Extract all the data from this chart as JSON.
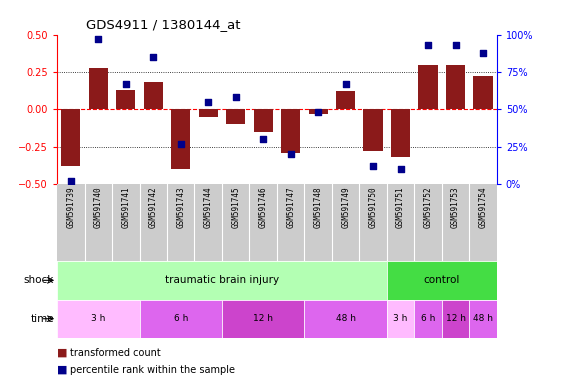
{
  "title": "GDS4911 / 1380144_at",
  "samples": [
    "GSM591739",
    "GSM591740",
    "GSM591741",
    "GSM591742",
    "GSM591743",
    "GSM591744",
    "GSM591745",
    "GSM591746",
    "GSM591747",
    "GSM591748",
    "GSM591749",
    "GSM591750",
    "GSM591751",
    "GSM591752",
    "GSM591753",
    "GSM591754"
  ],
  "bar_values": [
    -0.38,
    0.28,
    0.13,
    0.18,
    -0.4,
    -0.05,
    -0.1,
    -0.15,
    -0.29,
    -0.03,
    0.12,
    -0.28,
    -0.32,
    0.3,
    0.3,
    0.22
  ],
  "percentile_values": [
    2,
    97,
    67,
    85,
    27,
    55,
    58,
    30,
    20,
    48,
    67,
    12,
    10,
    93,
    93,
    88
  ],
  "bar_color": "#8b1a1a",
  "percentile_color": "#00008b",
  "ylim_left": [
    -0.5,
    0.5
  ],
  "ylim_right": [
    0,
    100
  ],
  "yticks_left": [
    -0.5,
    -0.25,
    0.0,
    0.25,
    0.5
  ],
  "ytick_labels_right": [
    "0%",
    "25%",
    "50%",
    "75%",
    "100%"
  ],
  "dotted_lines": [
    0.25,
    0.0,
    -0.25
  ],
  "shock_groups": [
    {
      "label": "traumatic brain injury",
      "start": 0,
      "end": 12,
      "color": "#b3ffb3"
    },
    {
      "label": "control",
      "start": 12,
      "end": 16,
      "color": "#44dd44"
    }
  ],
  "time_groups": [
    {
      "label": "3 h",
      "start": 0,
      "end": 3,
      "color": "#ffbbff"
    },
    {
      "label": "6 h",
      "start": 3,
      "end": 6,
      "color": "#dd66ee"
    },
    {
      "label": "12 h",
      "start": 6,
      "end": 9,
      "color": "#cc44cc"
    },
    {
      "label": "48 h",
      "start": 9,
      "end": 12,
      "color": "#dd66ee"
    },
    {
      "label": "3 h",
      "start": 12,
      "end": 13,
      "color": "#ffbbff"
    },
    {
      "label": "6 h",
      "start": 13,
      "end": 14,
      "color": "#dd66ee"
    },
    {
      "label": "12 h",
      "start": 14,
      "end": 15,
      "color": "#cc44cc"
    },
    {
      "label": "48 h",
      "start": 15,
      "end": 16,
      "color": "#dd66ee"
    }
  ],
  "legend_bar_label": "transformed count",
  "legend_pct_label": "percentile rank within the sample",
  "bg_sample": "#cccccc",
  "sample_sep_color": "#ffffff"
}
